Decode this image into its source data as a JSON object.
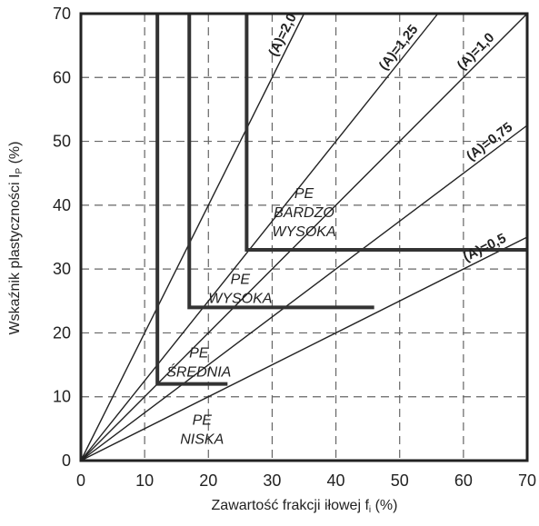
{
  "chart_data": {
    "type": "line",
    "xlabel": "Zawartość frakcji iłowej f",
    "xlabel_sub": "i",
    "xlabel_unit": "(%)",
    "ylabel": "Wskaźnik plastyczności I",
    "ylabel_sub": "P",
    "ylabel_unit": "(%)",
    "xlim": [
      0,
      70
    ],
    "ylim": [
      0,
      70
    ],
    "x_ticks": [
      "0",
      "10",
      "20",
      "30",
      "40",
      "50",
      "60",
      "70"
    ],
    "y_ticks": [
      "0",
      "10",
      "20",
      "30",
      "40",
      "50",
      "60",
      "70"
    ],
    "grid": "dashed",
    "activity_lines": [
      {
        "label": "(A)=2,0",
        "slope": 2.0
      },
      {
        "label": "(A)=1,25",
        "slope": 1.25
      },
      {
        "label": "(A)=1,0",
        "slope": 1.0
      },
      {
        "label": "(A)=0,75",
        "slope": 0.75
      },
      {
        "label": "(A)=0,5",
        "slope": 0.5
      }
    ],
    "zone_boundaries": [
      {
        "x": 12,
        "y": 12,
        "x_end": 23
      },
      {
        "x": 17,
        "y": 24,
        "x_end": 46
      },
      {
        "x": 26,
        "y": 33,
        "x_end": 70
      }
    ],
    "zones": [
      {
        "lines": [
          "PE",
          "NISKA"
        ],
        "x": 19,
        "y": 5
      },
      {
        "lines": [
          "PE",
          "ŚREDNIA"
        ],
        "x": 18.5,
        "y": 15.5
      },
      {
        "lines": [
          "PE",
          "WYSOKA"
        ],
        "x": 25,
        "y": 27
      },
      {
        "lines": [
          "PE",
          "BARDZO",
          "WYSOKA"
        ],
        "x": 35,
        "y": 39
      }
    ]
  }
}
